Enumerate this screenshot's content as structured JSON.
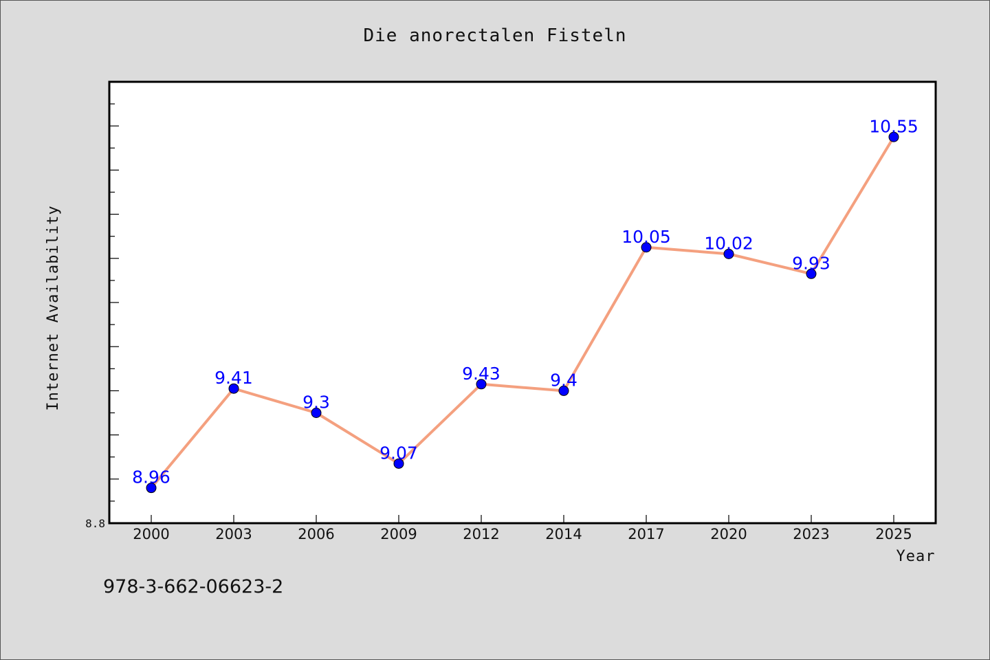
{
  "chart_data": {
    "type": "line",
    "title": "Die anorectalen Fisteln",
    "xlabel": "Year",
    "ylabel": "Internet Availability",
    "categories": [
      "2000",
      "2003",
      "2006",
      "2009",
      "2012",
      "2014",
      "2017",
      "2020",
      "2023",
      "2025"
    ],
    "series": [
      {
        "values": [
          8.96,
          9.41,
          9.3,
          9.07,
          9.43,
          9.4,
          10.05,
          10.02,
          9.93,
          10.55
        ],
        "data_labels": [
          "8.96",
          "9.41",
          "9.3",
          "9.07",
          "9.43",
          "9.4",
          "10.05",
          "10.02",
          "9.93",
          "10.55"
        ]
      }
    ],
    "ylim": [
      8.8,
      10.8
    ],
    "ytick_labels": [
      "8.8"
    ],
    "grid": false,
    "colors": {
      "line": "#f4a07f",
      "marker": "#0000ff",
      "label": "#0000ff",
      "background": "#dcdcdc",
      "plot_area": "#ffffff"
    }
  },
  "footnote": "978-3-662-06623-2"
}
